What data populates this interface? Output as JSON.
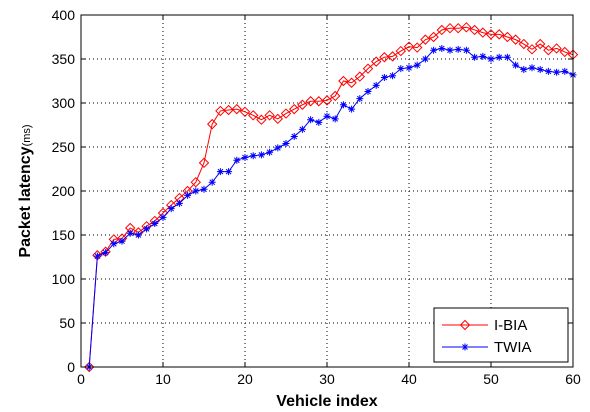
{
  "chart_data": {
    "type": "line",
    "xlabel": "Vehicle index",
    "ylabel": "Packet latency",
    "ylabel_unit": "(ms)",
    "xlim": [
      0,
      60
    ],
    "ylim": [
      0,
      400
    ],
    "xticks": [
      0,
      10,
      20,
      30,
      40,
      50,
      60
    ],
    "yticks": [
      0,
      50,
      100,
      150,
      200,
      250,
      300,
      350,
      400
    ],
    "grid": true,
    "legend_position": "bottom-right",
    "x": [
      1,
      2,
      3,
      4,
      5,
      6,
      7,
      8,
      9,
      10,
      11,
      12,
      13,
      14,
      15,
      16,
      17,
      18,
      19,
      20,
      21,
      22,
      23,
      24,
      25,
      26,
      27,
      28,
      29,
      30,
      31,
      32,
      33,
      34,
      35,
      36,
      37,
      38,
      39,
      40,
      41,
      42,
      43,
      44,
      45,
      46,
      47,
      48,
      49,
      50,
      51,
      52,
      53,
      54,
      55,
      56,
      57,
      58,
      59,
      60
    ],
    "series": [
      {
        "name": "I-BIA",
        "color": "#ff0000",
        "marker": "diamond",
        "values": [
          0,
          127,
          131,
          145,
          146,
          158,
          153,
          160,
          166,
          175,
          184,
          192,
          200,
          210,
          232,
          276,
          291,
          292,
          293,
          290,
          286,
          281,
          286,
          282,
          288,
          293,
          298,
          302,
          302,
          303,
          308,
          325,
          323,
          330,
          339,
          347,
          352,
          353,
          359,
          364,
          363,
          372,
          375,
          383,
          385,
          385,
          386,
          383,
          380,
          378,
          378,
          375,
          372,
          367,
          361,
          367,
          360,
          362,
          358,
          355
        ]
      },
      {
        "name": "TWIA",
        "color": "#0000ff",
        "marker": "star",
        "values": [
          0,
          126,
          130,
          140,
          143,
          152,
          150,
          157,
          163,
          170,
          180,
          186,
          195,
          200,
          202,
          210,
          222,
          222,
          235,
          238,
          240,
          241,
          244,
          249,
          254,
          262,
          270,
          281,
          278,
          285,
          282,
          298,
          293,
          305,
          313,
          320,
          329,
          331,
          339,
          340,
          343,
          350,
          360,
          362,
          360,
          361,
          360,
          352,
          353,
          350,
          352,
          352,
          343,
          338,
          340,
          338,
          336,
          335,
          336,
          332
        ]
      }
    ]
  }
}
